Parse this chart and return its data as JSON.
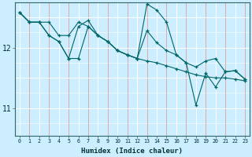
{
  "xlabel": "Humidex (Indice chaleur)",
  "bg_color": "#b0dde4",
  "plot_bg_color": "#cceeff",
  "line_color": "#006666",
  "grid_white": "#ffffff",
  "grid_red": "#ddaaaa",
  "x_ticks": [
    0,
    1,
    2,
    3,
    4,
    5,
    6,
    7,
    8,
    9,
    10,
    11,
    12,
    13,
    14,
    15,
    16,
    17,
    18,
    19,
    20,
    21,
    22,
    23
  ],
  "y_ticks": [
    11,
    12
  ],
  "ylim": [
    10.55,
    12.75
  ],
  "xlim": [
    -0.5,
    23.5
  ],
  "series1": [
    12.58,
    12.42,
    12.42,
    12.42,
    12.2,
    12.2,
    12.42,
    12.35,
    12.2,
    12.1,
    11.95,
    11.88,
    11.82,
    11.78,
    11.75,
    11.7,
    11.65,
    11.6,
    11.55,
    11.52,
    11.5,
    11.5,
    11.48,
    11.45
  ],
  "series2": [
    12.58,
    12.42,
    12.42,
    12.2,
    12.1,
    11.82,
    11.82,
    12.35,
    12.2,
    12.1,
    11.95,
    11.88,
    11.82,
    12.72,
    12.62,
    12.42,
    11.88,
    11.75,
    11.05,
    11.58,
    11.35,
    11.6,
    11.62,
    11.48
  ],
  "series3": [
    12.58,
    12.42,
    12.42,
    12.2,
    12.1,
    11.82,
    12.35,
    12.45,
    12.2,
    12.1,
    11.95,
    11.88,
    11.82,
    12.28,
    12.08,
    11.95,
    11.88,
    11.75,
    11.68,
    11.78,
    11.82,
    11.6,
    11.62,
    11.48
  ]
}
